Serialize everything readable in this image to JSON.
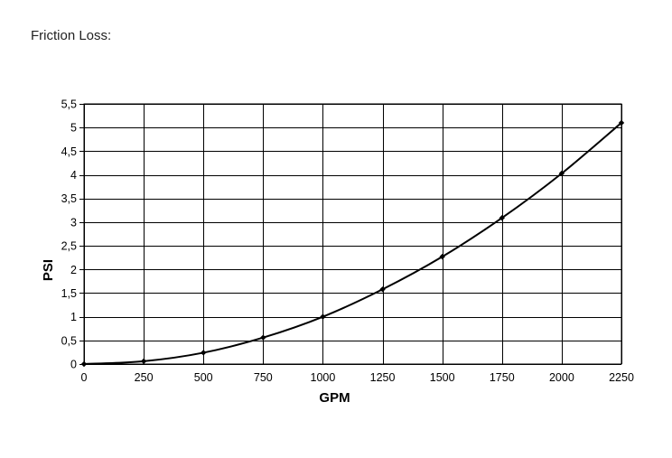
{
  "page": {
    "title": "Friction Loss:"
  },
  "chart_data": {
    "type": "line",
    "title": "",
    "xlabel": "GPM",
    "ylabel": "PSI",
    "xlim": [
      0,
      2250
    ],
    "ylim": [
      0,
      5.5
    ],
    "x_ticks": [
      0,
      250,
      500,
      750,
      1000,
      1250,
      1500,
      1750,
      2000,
      2250
    ],
    "x_tick_labels": [
      "0",
      "250",
      "500",
      "750",
      "1000",
      "1250",
      "1500",
      "1750",
      "2000",
      "2250"
    ],
    "y_ticks": [
      0,
      0.5,
      1,
      1.5,
      2,
      2.5,
      3,
      3.5,
      4,
      4.5,
      5,
      5.5
    ],
    "y_tick_labels": [
      "0",
      "0,5",
      "1",
      "1,5",
      "2",
      "2,5",
      "3",
      "3,5",
      "4",
      "4,5",
      "5",
      "5,5"
    ],
    "grid": true,
    "legend": "none",
    "series": [
      {
        "x": [
          0,
          250,
          500,
          750,
          1000,
          1250,
          1500,
          1750,
          2000,
          2250
        ],
        "y": [
          0,
          0.06,
          0.24,
          0.56,
          1.0,
          1.58,
          2.27,
          3.09,
          4.03,
          5.1
        ],
        "color": "#000000",
        "marker": "diamond"
      }
    ]
  }
}
